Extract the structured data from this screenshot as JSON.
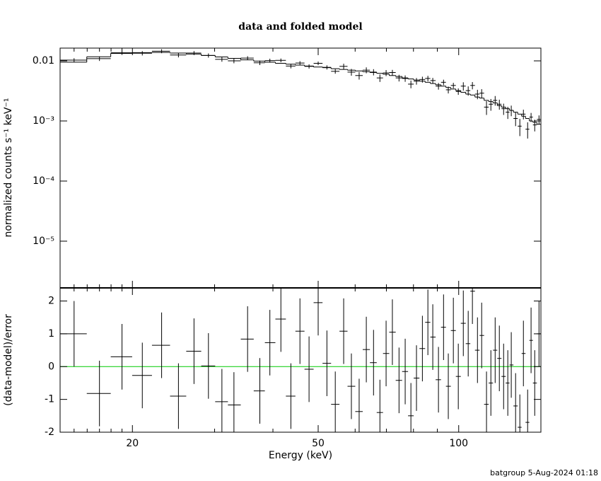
{
  "chart_data": [
    {
      "type": "step-errorbar",
      "title": "data and folded model",
      "ylabel": "normalized counts s⁻¹ keV⁻¹",
      "log_x": true,
      "log_y": true,
      "color": "#000000",
      "xlim": [
        14,
        150
      ],
      "xticks": [
        20,
        50,
        100
      ],
      "xminorticks": [
        15,
        16,
        17,
        18,
        19,
        30,
        40,
        60,
        70,
        80,
        90
      ],
      "ylim": [
        1.67e-06,
        0.0163
      ],
      "yticks": [
        0.01,
        {
          "value": 0.001,
          "label": "10⁻³"
        },
        {
          "value": 0.0001,
          "label": "10⁻⁴"
        },
        {
          "value": 1e-05,
          "label": "10⁻⁵"
        }
      ],
      "x": [
        15.0,
        17.0,
        19.0,
        21.0,
        23.1,
        25.1,
        27.1,
        29.1,
        31.1,
        33.0,
        35.3,
        37.5,
        39.4,
        41.6,
        43.7,
        45.7,
        47.8,
        50.0,
        52.2,
        54.4,
        56.7,
        58.9,
        61.2,
        63.4,
        65.7,
        67.8,
        69.9,
        72.1,
        74.5,
        76.8,
        79.0,
        81.2,
        83.6,
        85.9,
        88.0,
        90.5,
        92.8,
        95.0,
        97.4,
        99.8,
        102.3,
        104.8,
        107.0,
        109.7,
        112.0,
        114.7,
        117.2,
        119.7,
        122.2,
        124.8,
        127.4,
        129.6,
        132.4,
        135.2,
        137.6,
        140.5,
        142.9,
        145.5,
        148.6
      ],
      "values": [
        0.0103,
        0.0109,
        0.0136,
        0.0134,
        0.0145,
        0.0125,
        0.0135,
        0.0123,
        0.0106,
        0.01,
        0.0111,
        0.0093,
        0.0101,
        0.0102,
        0.0082,
        0.0092,
        0.0081,
        0.0091,
        0.0078,
        0.0067,
        0.0081,
        0.0065,
        0.0057,
        0.007,
        0.0065,
        0.0052,
        0.0063,
        0.0064,
        0.0052,
        0.0051,
        0.0041,
        0.0046,
        0.0049,
        0.0051,
        0.0047,
        0.0038,
        0.0044,
        0.0033,
        0.0039,
        0.0031,
        0.0038,
        0.0032,
        0.0039,
        0.0028,
        0.0029,
        0.0017,
        0.0019,
        0.0022,
        0.0019,
        0.0016,
        0.0014,
        0.0015,
        0.0011,
        0.00082,
        0.0013,
        0.00073,
        0.00116,
        0.00086,
        0.00106
      ],
      "errors": [
        0.00076,
        0.00094,
        0.00106,
        0.0011,
        0.0011,
        0.00108,
        0.00104,
        0.00098,
        0.00093,
        0.00088,
        0.00083,
        0.00079,
        0.00076,
        0.00073,
        0.0007,
        0.00068,
        0.00066,
        0.00063,
        0.00062,
        0.00059,
        0.00086,
        0.00084,
        0.00082,
        0.00079,
        0.00077,
        0.00074,
        0.00072,
        0.00068,
        0.00066,
        0.00062,
        0.0006,
        0.00058,
        0.00055,
        0.00053,
        0.0005,
        0.00048,
        0.00046,
        0.00043,
        0.00041,
        0.00038,
        0.0006,
        0.00056,
        0.00054,
        0.0005,
        0.00048,
        0.00044,
        0.00042,
        0.0004,
        0.00036,
        0.00034,
        0.00032,
        0.0003,
        0.00028,
        0.00026,
        0.00024,
        0.00022,
        0.0002,
        0.00019,
        0.000176
      ],
      "model": [
        0.0095,
        0.0117,
        0.0133,
        0.0137,
        0.0138,
        0.0135,
        0.013,
        0.0123,
        0.0116,
        0.011,
        0.0104,
        0.0099,
        0.0095,
        0.0091,
        0.0088,
        0.0085,
        0.0082,
        0.0079,
        0.0077,
        0.0074,
        0.0072,
        0.007,
        0.0068,
        0.0066,
        0.0064,
        0.0062,
        0.006,
        0.0057,
        0.0055,
        0.0052,
        0.005,
        0.0048,
        0.0046,
        0.0044,
        0.0042,
        0.004,
        0.0038,
        0.0036,
        0.0034,
        0.0032,
        0.003,
        0.0028,
        0.0027,
        0.0025,
        0.0024,
        0.0022,
        0.0021,
        0.002,
        0.0018,
        0.0017,
        0.0016,
        0.0015,
        0.0014,
        0.0013,
        0.0012,
        0.0011,
        0.001,
        0.00095,
        0.00088
      ]
    },
    {
      "type": "errorbar",
      "xlabel": "Energy (keV)",
      "ylabel": "(data-model)/error",
      "color": "#000000",
      "ylim": [
        -2,
        2.4
      ],
      "yticks": [
        -2,
        -1,
        0,
        1,
        2
      ],
      "reference_line": 0,
      "reference_color": "#00cc00",
      "values": [
        1.0,
        -0.82,
        0.3,
        -0.27,
        0.65,
        -0.9,
        0.47,
        0.02,
        -1.07,
        -1.17,
        0.84,
        -0.74,
        0.73,
        1.45,
        -0.9,
        1.08,
        -0.08,
        1.95,
        0.1,
        -1.15,
        1.08,
        -0.6,
        -1.37,
        0.52,
        0.12,
        -1.4,
        0.4,
        1.05,
        -0.42,
        -0.15,
        -1.5,
        -0.35,
        0.55,
        1.35,
        0.9,
        -0.4,
        1.2,
        -0.6,
        1.1,
        -0.3,
        1.32,
        0.7,
        2.3,
        0.5,
        0.95,
        -1.15,
        -0.5,
        0.5,
        0.25,
        -0.3,
        -0.5,
        0.05,
        -1.2,
        -1.85,
        0.4,
        -1.7,
        0.8,
        -0.5,
        1.0
      ],
      "errors": [
        1,
        1,
        1,
        1,
        1,
        1,
        1,
        1,
        1,
        1,
        1,
        1,
        1,
        1,
        1,
        1,
        1,
        1,
        1,
        1,
        1,
        1,
        1,
        1,
        1,
        1,
        1,
        1,
        1,
        1,
        1,
        1,
        1,
        1,
        1,
        1,
        1,
        1,
        1,
        1,
        1,
        1,
        1,
        1,
        1,
        1,
        1,
        1,
        1,
        1,
        1,
        1,
        1,
        1,
        1,
        1,
        1,
        1,
        1
      ]
    }
  ],
  "footer": "batgroup  5-Aug-2024 01:18"
}
